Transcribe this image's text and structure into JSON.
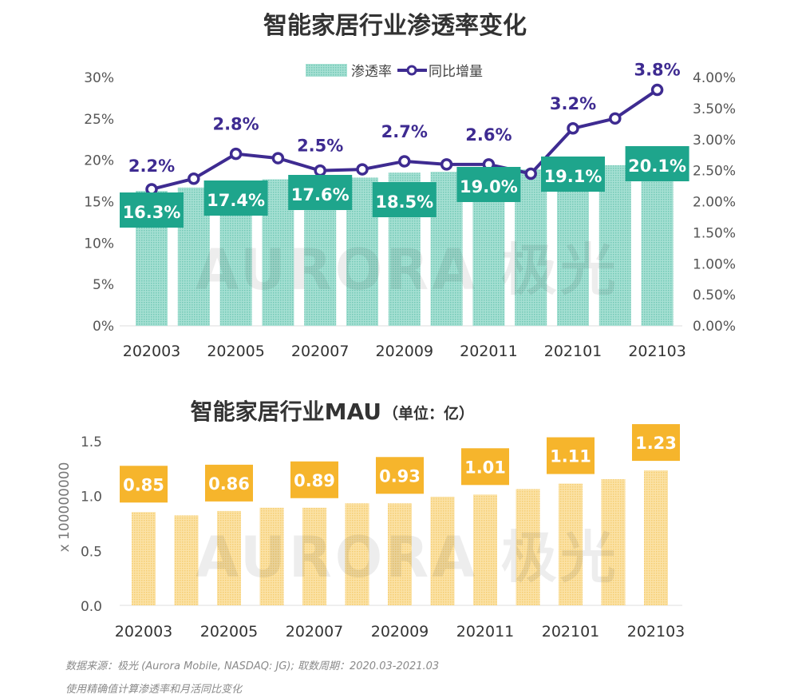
{
  "colors": {
    "bar_top": "#8fd8c7",
    "label_top": "#1ea58c",
    "line": "#3e2b91",
    "bar_bottom": "#f9d98c",
    "label_bottom": "#f6b52c"
  },
  "watermark": "AURORA 极光",
  "footer": {
    "source": "数据来源：极光 (Aurora Mobile, NASDAQ: JG); 取数周期：2020.03-2021.03",
    "note": "使用精确值计算渗透率和月活同比变化"
  },
  "chart_data": [
    {
      "type": "bar+line",
      "title": "智能家居行业渗透率变化",
      "categories": [
        "202003",
        "202004",
        "202005",
        "202006",
        "202007",
        "202008",
        "202009",
        "202010",
        "202011",
        "202012",
        "202101",
        "202102",
        "202103"
      ],
      "x_tick_labels": [
        "202003",
        "202005",
        "202007",
        "202009",
        "202011",
        "202101",
        "202103"
      ],
      "legend": {
        "position": "top",
        "entries": [
          "渗透率",
          "同比增量"
        ]
      },
      "series": [
        {
          "name": "渗透率",
          "kind": "bar",
          "axis": "left",
          "values": [
            16.3,
            16.7,
            17.4,
            17.7,
            17.6,
            17.9,
            18.5,
            18.6,
            19.0,
            18.9,
            19.1,
            19.4,
            20.1
          ],
          "data_labels": {
            "202003": "16.3%",
            "202005": "17.4%",
            "202007": "17.6%",
            "202009": "18.5%",
            "202011": "19.0%",
            "202101": "19.1%",
            "202103": "20.1%"
          }
        },
        {
          "name": "同比增量",
          "kind": "line",
          "axis": "right",
          "values": [
            2.2,
            2.37,
            2.77,
            2.7,
            2.5,
            2.52,
            2.65,
            2.6,
            2.6,
            2.45,
            3.18,
            3.34,
            3.8
          ],
          "data_labels": {
            "202003": "2.2%",
            "202005": "2.8%",
            "202007": "2.5%",
            "202009": "2.7%",
            "202011": "2.6%",
            "202101": "3.2%",
            "202103": "3.8%"
          }
        }
      ],
      "left_axis": {
        "ylim": [
          0,
          30
        ],
        "ticks": [
          "0%",
          "5%",
          "10%",
          "15%",
          "20%",
          "25%",
          "30%"
        ]
      },
      "right_axis": {
        "ylim": [
          0,
          4
        ],
        "ticks": [
          "0.00%",
          "0.50%",
          "1.00%",
          "1.50%",
          "2.00%",
          "2.50%",
          "3.00%",
          "3.50%",
          "4.00%"
        ]
      },
      "grid": false
    },
    {
      "type": "bar",
      "title": "智能家居行业MAU",
      "title_unit": "（单位：亿）",
      "ylabel": "x 100000000",
      "categories": [
        "202003",
        "202004",
        "202005",
        "202006",
        "202007",
        "202008",
        "202009",
        "202010",
        "202011",
        "202012",
        "202101",
        "202102",
        "202103"
      ],
      "x_tick_labels": [
        "202003",
        "202005",
        "202007",
        "202009",
        "202011",
        "202101",
        "202103"
      ],
      "values": [
        0.85,
        0.82,
        0.86,
        0.89,
        0.89,
        0.93,
        0.93,
        0.99,
        1.01,
        1.06,
        1.11,
        1.15,
        1.23
      ],
      "data_labels": {
        "202003": "0.85",
        "202005": "0.86",
        "202007": "0.89",
        "202009": "0.93",
        "202011": "1.01",
        "202101": "1.11",
        "202103": "1.23"
      },
      "ylim": [
        0,
        1.5
      ],
      "y_ticks": [
        "0.0",
        "0.5",
        "1.0",
        "1.5"
      ],
      "grid": false
    }
  ]
}
